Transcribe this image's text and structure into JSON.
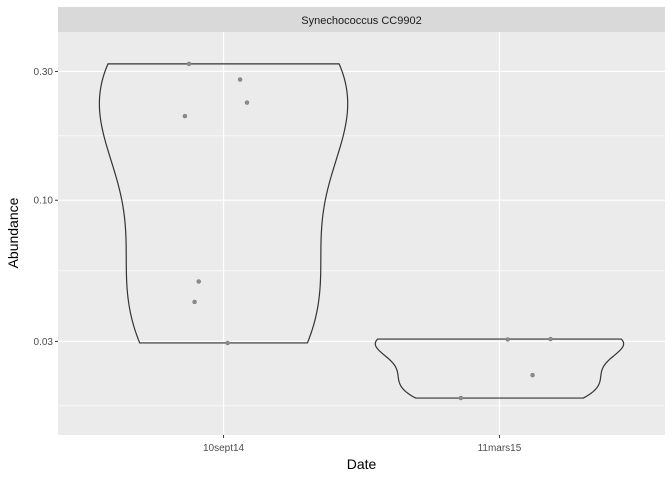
{
  "chart_data": {
    "type": "violin",
    "facet": "Synechococcus CC9902",
    "xlabel": "Date",
    "ylabel": "Abundance",
    "categories": [
      "10sept14",
      "11mars15"
    ],
    "y_scale": "log10",
    "y_ticks": [
      0.03,
      0.1,
      0.3
    ],
    "y_tick_labels": [
      "0.03",
      "0.10",
      "0.30"
    ],
    "ylim": [
      0.0135,
      0.42
    ],
    "grid": true,
    "points": [
      {
        "category": "10sept14",
        "values": [
          0.32,
          0.28,
          0.23,
          0.205,
          0.05,
          0.042,
          0.0296
        ]
      },
      {
        "category": "11mars15",
        "values": [
          0.0305,
          0.0306,
          0.0225,
          0.0185
        ]
      }
    ],
    "violins": [
      {
        "category": "10sept14",
        "min": 0.0296,
        "max": 0.32
      },
      {
        "category": "11mars15",
        "min": 0.0185,
        "max": 0.0306
      }
    ]
  }
}
